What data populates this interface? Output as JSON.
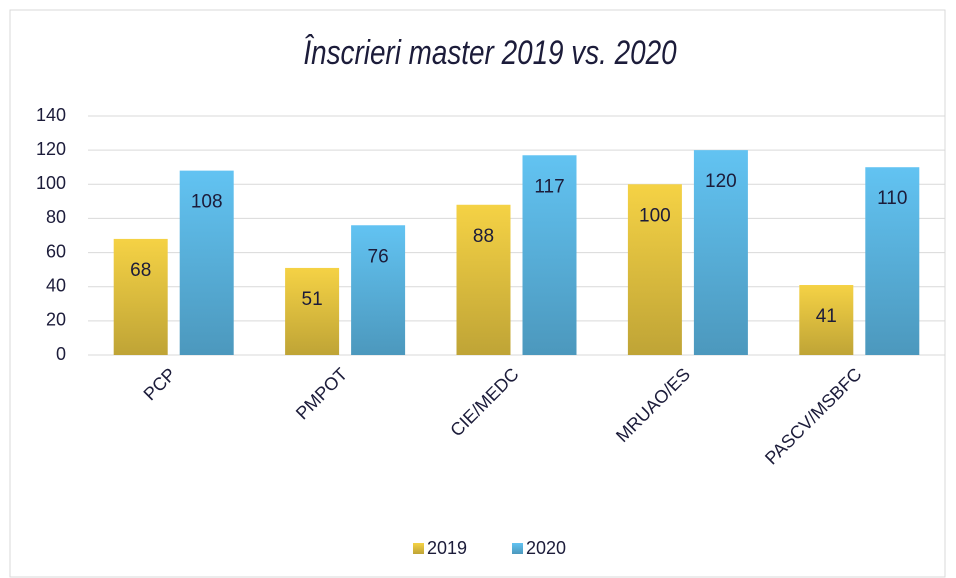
{
  "chart_data": {
    "type": "bar",
    "title": "Înscrieri master 2019 vs. 2020",
    "categories": [
      "PCP",
      "PMPOT",
      "CIE/MEDC",
      "MRUAO/ES",
      "PASCV/MSBFC"
    ],
    "series": [
      {
        "name": "2019",
        "color": "#f5d245",
        "values": [
          68,
          51,
          88,
          100,
          41
        ]
      },
      {
        "name": "2020",
        "color": "#62c3f2",
        "values": [
          108,
          76,
          117,
          120,
          110
        ]
      }
    ],
    "ylim": [
      0,
      140
    ],
    "yticks": [
      0,
      20,
      40,
      60,
      80,
      100,
      120,
      140
    ],
    "grid": true,
    "legend": "bottom"
  }
}
